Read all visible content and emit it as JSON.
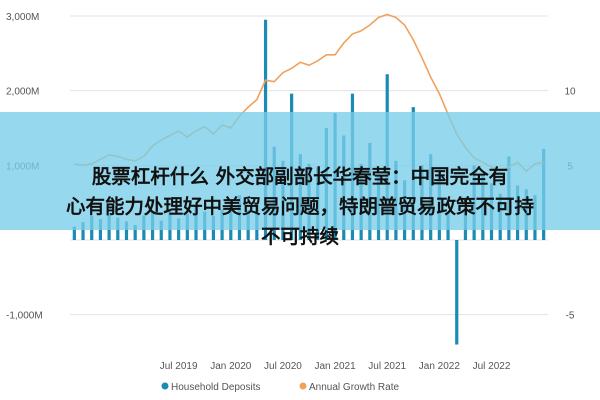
{
  "headline": {
    "line1": "股票杠杆什么 外交部副部长华春莹：中国完全有",
    "line2": "心有能力处理好中美贸易问题，特朗普贸易政策不可持",
    "line3": "不可持续"
  },
  "colors": {
    "bar": "#1a8bb5",
    "line": "#f0a25c",
    "grid": "#e3e3e3",
    "axis_text": "#555555",
    "overlay": "#7ecde7"
  },
  "chart_data": {
    "type": "bar+line",
    "title": "",
    "xlabel": "",
    "ylabel": "",
    "ylim_left": [
      -1500,
      3000
    ],
    "ylim_right": [
      -7.5,
      15
    ],
    "left_ticks": [
      "3,000M",
      "2,000M",
      "1,000M",
      "-1,000M"
    ],
    "left_tick_values": [
      3000,
      2000,
      1000,
      -1000
    ],
    "right_ticks": [
      "10",
      "5",
      "-5"
    ],
    "right_tick_values": [
      10,
      5,
      -5
    ],
    "x_ticks": [
      "Jul 2019",
      "Jan 2020",
      "Jul 2020",
      "Jan 2021",
      "Jul 2021",
      "Jan 2022",
      "Jul 2022"
    ],
    "x_tick_index": [
      12,
      18,
      24,
      30,
      36,
      42,
      48
    ],
    "grid": true,
    "legend_position": "bottom",
    "series": [
      {
        "name": "Household Deposits",
        "type": "bar",
        "axis": "left",
        "values": [
          180,
          240,
          320,
          280,
          360,
          300,
          250,
          200,
          330,
          380,
          260,
          410,
          290,
          350,
          450,
          380,
          320,
          410,
          520,
          600,
          400,
          480,
          2950,
          1250,
          1060,
          1960,
          1150,
          1020,
          980,
          1500,
          1700,
          1400,
          1960,
          1020,
          1300,
          880,
          2220,
          1060,
          800,
          1780,
          1000,
          1150,
          940,
          360,
          -1400,
          380,
          1000,
          860,
          760,
          620,
          1120,
          730,
          680,
          600,
          1220
        ]
      },
      {
        "name": "Annual Growth Rate",
        "type": "line",
        "axis": "right",
        "values": [
          5.1,
          5.0,
          5.1,
          5.4,
          5.7,
          5.6,
          5.4,
          5.3,
          5.6,
          6.3,
          6.7,
          7.0,
          7.3,
          6.9,
          7.3,
          7.6,
          7.1,
          7.7,
          7.5,
          8.3,
          8.9,
          9.4,
          10.7,
          10.6,
          11.2,
          11.5,
          11.9,
          11.7,
          12.0,
          12.4,
          12.4,
          13.2,
          13.8,
          14.0,
          14.4,
          14.9,
          15.1,
          14.9,
          14.4,
          13.4,
          12.2,
          10.9,
          9.8,
          8.4,
          7.1,
          6.2,
          5.5,
          5.2,
          4.9,
          4.6,
          4.9,
          5.2,
          4.6,
          5.1,
          5.2
        ]
      }
    ]
  }
}
